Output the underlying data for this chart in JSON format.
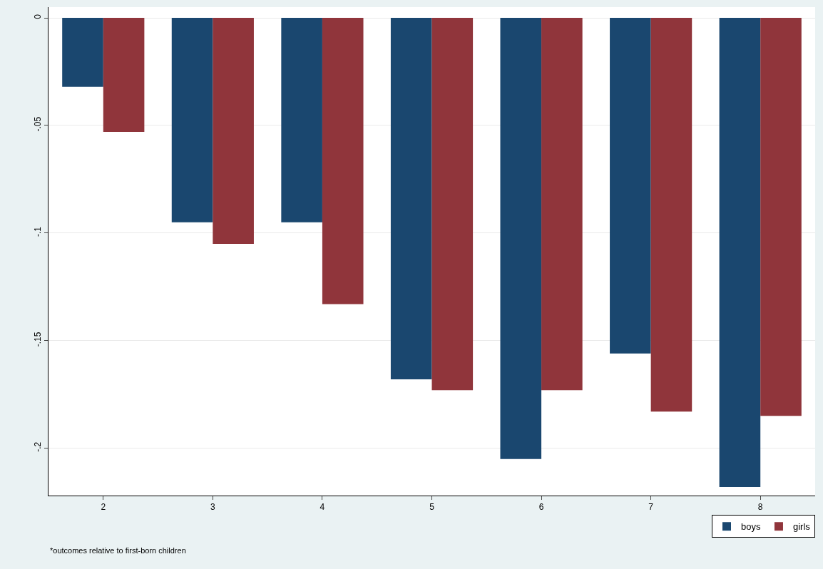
{
  "chart_data": {
    "type": "bar",
    "categories": [
      "2",
      "3",
      "4",
      "5",
      "6",
      "7",
      "8"
    ],
    "series": [
      {
        "name": "boys",
        "color": "#1a476f",
        "values": [
          -0.032,
          -0.095,
          -0.095,
          -0.168,
          -0.205,
          -0.156,
          -0.218
        ]
      },
      {
        "name": "girls",
        "color": "#90353b",
        "values": [
          -0.053,
          -0.105,
          -0.133,
          -0.173,
          -0.173,
          -0.183,
          -0.185
        ]
      }
    ],
    "ylim": [
      -0.222,
      0.005
    ],
    "yticks": [
      {
        "value": 0,
        "label": "0"
      },
      {
        "value": -0.05,
        "label": "-.05"
      },
      {
        "value": -0.1,
        "label": "-.1"
      },
      {
        "value": -0.15,
        "label": "-.15"
      },
      {
        "value": -0.2,
        "label": "-.2"
      }
    ],
    "grid": "y",
    "legend": "bottom right",
    "annotations": [
      "*outcomes relative to first-born children"
    ]
  }
}
